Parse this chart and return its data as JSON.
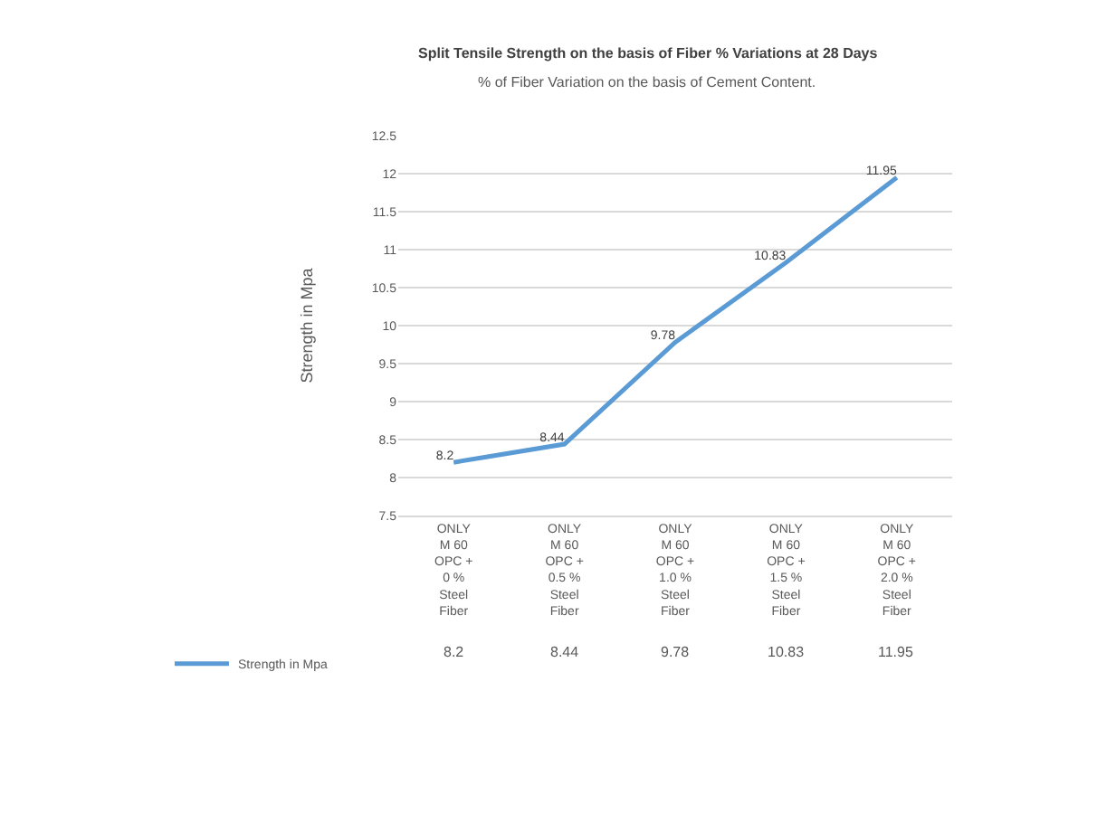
{
  "chart_data": {
    "type": "line",
    "title": "Split Tensile Strength on the basis of Fiber % Variations at 28 Days",
    "subtitle": "% of Fiber Variation on the basis of Cement Content.",
    "ylabel": "Strength in Mpa",
    "categories": [
      "ONLY M 60 OPC + 0 % Steel Fiber",
      "ONLY M 60 OPC + 0.5 % Steel Fiber",
      "ONLY M 60 OPC + 1.0 % Steel Fiber",
      "ONLY M 60 OPC + 1.5 % Steel Fiber",
      "ONLY M 60 OPC + 2.0 % Steel Fiber"
    ],
    "series": [
      {
        "name": "Strength in Mpa",
        "color": "#5b9bd5",
        "values": [
          8.2,
          8.44,
          9.78,
          10.83,
          11.95
        ],
        "value_labels": [
          "8.2",
          "8.44",
          "9.78",
          "10.83",
          "11.95"
        ]
      }
    ],
    "annotations": [
      "8.2",
      "8.44",
      "9.78",
      "10.83",
      "11.95"
    ],
    "ylim": [
      7.5,
      12.5
    ],
    "yticks": [
      7.5,
      8,
      8.5,
      9,
      9.5,
      10,
      10.5,
      11,
      11.5,
      12,
      12.5
    ],
    "grid": "y",
    "legend": "bottom left",
    "data_labels": true,
    "marker": "none",
    "line_style": "solid"
  }
}
